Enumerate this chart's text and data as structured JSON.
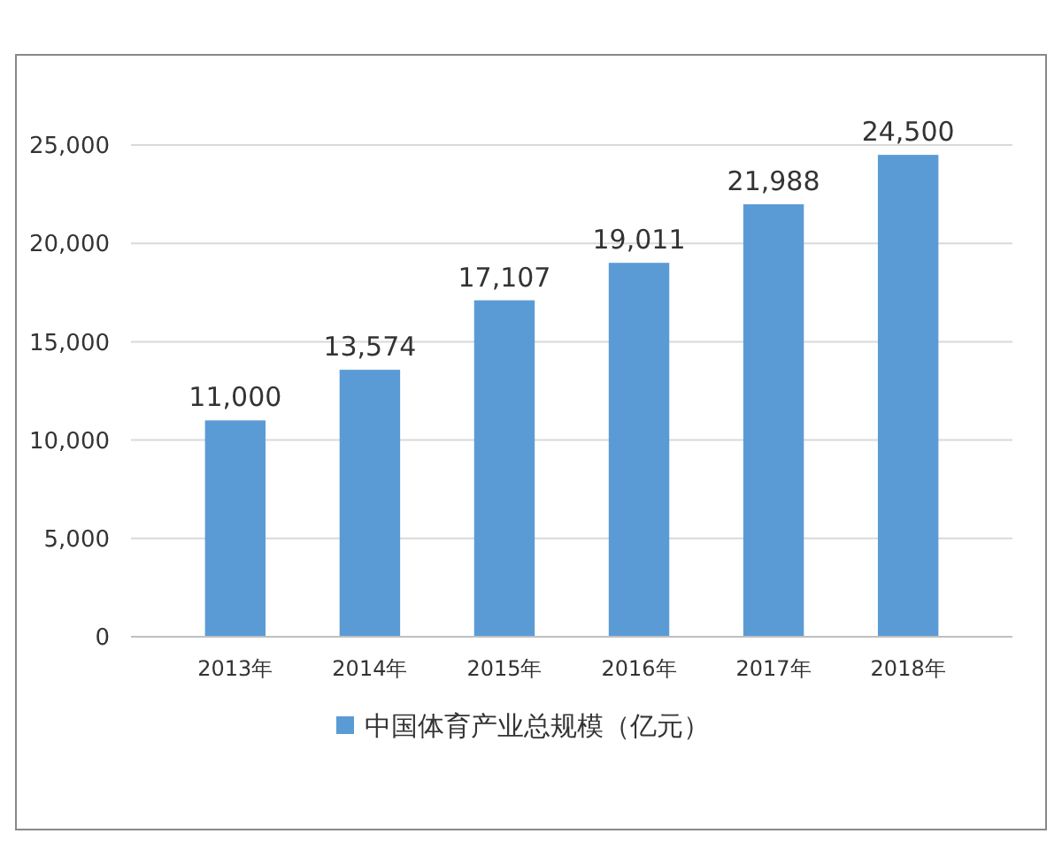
{
  "chart_data": {
    "type": "bar",
    "categories": [
      "2013年",
      "2014年",
      "2015年",
      "2016年",
      "2017年",
      "2018年"
    ],
    "series": [
      {
        "name": "中国体育产业总规模（亿元）",
        "color": "#5b9bd5",
        "values": [
          11000,
          13574,
          17107,
          19011,
          21988,
          24500
        ]
      }
    ],
    "ylim": [
      0,
      25000
    ],
    "yticks": [
      {
        "value": 0,
        "label": "0"
      },
      {
        "value": 5000,
        "label": "5,000"
      },
      {
        "value": 10000,
        "label": "10,000"
      },
      {
        "value": 15000,
        "label": "15,000"
      },
      {
        "value": 20000,
        "label": "20,000"
      },
      {
        "value": 25000,
        "label": "25,000"
      }
    ],
    "value_labels": [
      "11,000",
      "13,574",
      "17,107",
      "19,011",
      "21,988",
      "24,500"
    ],
    "grid": "y",
    "legend": "bottom"
  }
}
